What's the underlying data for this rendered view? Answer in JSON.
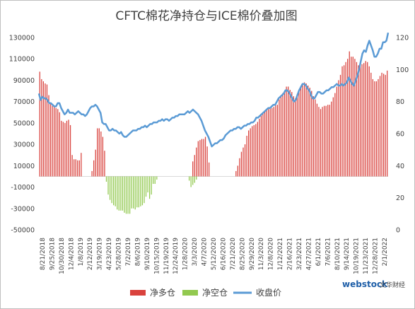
{
  "chart_data": {
    "type": "bar+line",
    "title": "CFTC棉花净持仓与ICE棉价叠加图",
    "y_left": {
      "min": -50000,
      "max": 130000,
      "step": 20000,
      "ticks": [
        "-50000",
        "-30000",
        "-10000",
        "10000",
        "30000",
        "50000",
        "70000",
        "90000",
        "110000",
        "130000"
      ]
    },
    "y_right": {
      "min": 0,
      "max": 120,
      "step": 20,
      "ticks": [
        "0",
        "20",
        "40",
        "60",
        "80",
        "100",
        "120"
      ]
    },
    "x_tick_labels": [
      "8/21/2018",
      "9/25/2018",
      "10/30/2018",
      "12/4/2018",
      "1/8/2019",
      "2/12/2019",
      "3/19/2019",
      "4/23/2019",
      "5/28/2019",
      "7/2/2019",
      "8/6/2019",
      "9/10/2019",
      "10/15/2019",
      "11/19/2019",
      "12/24/2019",
      "1/28/2020",
      "3/3/2020",
      "4/7/2020",
      "5/12/2020",
      "6/16/2020",
      "7/21/2020",
      "8/25/2020",
      "9/29/2020",
      "11/3/2020",
      "12/8/2020",
      "1/12/2021",
      "2/16/2021",
      "3/23/2021",
      "4/27/2021",
      "6/1/2021",
      "7/6/2021",
      "8/10/2021",
      "9/14/2021",
      "10/19/2021",
      "11/23/2021",
      "12/28/2021",
      "2/1/2022"
    ],
    "grid": false,
    "legend_position": "bottom",
    "series": [
      {
        "name": "净多仓",
        "kind": "bar",
        "color": "#d9423d",
        "axis": "left",
        "values": [
          98000,
          91000,
          89000,
          87000,
          86000,
          76000,
          68000,
          66000,
          65000,
          64000,
          63000,
          60000,
          52000,
          51000,
          50000,
          52000,
          53000,
          48000,
          20000,
          16000,
          16000,
          15000,
          15000,
          22000,
          0,
          0,
          0,
          0,
          0,
          5000,
          15000,
          25000,
          45000,
          45000,
          42000,
          37000,
          24000,
          0,
          0,
          0,
          0,
          0,
          0,
          0,
          0,
          0,
          0,
          0,
          0,
          0,
          0,
          0,
          0,
          0,
          0,
          0,
          0,
          0,
          0,
          0,
          0,
          0,
          0,
          0,
          0,
          0,
          0,
          0,
          0,
          0,
          0,
          0,
          0,
          0,
          0,
          0,
          0,
          0,
          0,
          0,
          0,
          0,
          0,
          0,
          0,
          14000,
          20000,
          27000,
          33000,
          34000,
          35000,
          35000,
          37000,
          28000,
          13000,
          0,
          0,
          0,
          0,
          0,
          0,
          0,
          0,
          0,
          0,
          0,
          0,
          0,
          0,
          5000,
          10000,
          17000,
          23000,
          27000,
          30000,
          38000,
          43000,
          45000,
          47000,
          48000,
          49000,
          51000,
          54000,
          57000,
          59000,
          61000,
          62000,
          63000,
          64000,
          64000,
          65000,
          67000,
          67000,
          72000,
          76000,
          78000,
          80000,
          84000,
          84000,
          81000,
          79000,
          75000,
          73000,
          77000,
          79000,
          84000,
          87000,
          88000,
          87000,
          85000,
          83000,
          80000,
          75000,
          72000,
          68000,
          65000,
          63000,
          65000,
          66000,
          66000,
          67000,
          67000,
          70000,
          74000,
          78000,
          84000,
          90000,
          95000,
          103000,
          104000,
          107000,
          110000,
          117000,
          112000,
          112000,
          110000,
          107000,
          104000,
          104000,
          105000,
          106000,
          108000,
          107000,
          103000,
          97000,
          91000,
          89000,
          89000,
          91000,
          94000,
          97000,
          96000,
          95000,
          99000
        ]
      },
      {
        "name": "净空仓",
        "kind": "bar",
        "color": "#92c94f",
        "axis": "left",
        "values": [
          0,
          0,
          0,
          0,
          0,
          0,
          0,
          0,
          0,
          0,
          0,
          0,
          0,
          0,
          0,
          0,
          0,
          0,
          0,
          0,
          0,
          0,
          0,
          0,
          0,
          0,
          0,
          0,
          0,
          0,
          0,
          0,
          0,
          0,
          0,
          0,
          0,
          -5000,
          -17000,
          -22000,
          -25000,
          -27000,
          -28000,
          -31000,
          -32000,
          -32000,
          -32000,
          -34000,
          -35000,
          -35000,
          -35000,
          -30000,
          -30000,
          -31000,
          -29000,
          -29000,
          -28000,
          -27000,
          -25000,
          -19000,
          -15000,
          -21000,
          -17000,
          -7000,
          -7000,
          -3000,
          0,
          0,
          0,
          0,
          0,
          0,
          0,
          0,
          0,
          0,
          0,
          0,
          0,
          0,
          0,
          0,
          0,
          -4000,
          -10000,
          -8000,
          -6000,
          -3000,
          0,
          0,
          0,
          0,
          0,
          0,
          0,
          0,
          0,
          0,
          0,
          0,
          0,
          0,
          0,
          0,
          0,
          0,
          0,
          0,
          0,
          0,
          0,
          0,
          0,
          0,
          0,
          0,
          0,
          0,
          0,
          0,
          0,
          0,
          0,
          0,
          0,
          0,
          0,
          0,
          0,
          0,
          0,
          0,
          0,
          0,
          0,
          0,
          0,
          0,
          0,
          0,
          0,
          0,
          0,
          0,
          0,
          0,
          0,
          0,
          0,
          0,
          0,
          0,
          0,
          0,
          0,
          0,
          0,
          0,
          0,
          0,
          0,
          0,
          0,
          0,
          0,
          0,
          0,
          0,
          0,
          0,
          0,
          0,
          0,
          0,
          0,
          0,
          0,
          0,
          0,
          0,
          0,
          0,
          0,
          0,
          0,
          0,
          0,
          0,
          0,
          0,
          0,
          0,
          0,
          0,
          0,
          0,
          0,
          0,
          0,
          0,
          0,
          0,
          0,
          0,
          0,
          0
        ]
      },
      {
        "name": "收盘价",
        "kind": "line",
        "color": "#5b9bd5",
        "axis": "right",
        "values": [
          85,
          81,
          83,
          82,
          82,
          81,
          79,
          79,
          78,
          77,
          77,
          79,
          79,
          76,
          74,
          72,
          73,
          75,
          73,
          73,
          73,
          72,
          73,
          74,
          73,
          72,
          72,
          71,
          72,
          74,
          76,
          77,
          77,
          78,
          77,
          75,
          73,
          67,
          66,
          66,
          64,
          62,
          62,
          63,
          62,
          62,
          61,
          60,
          61,
          59,
          58,
          58,
          59,
          60,
          61,
          62,
          62,
          62,
          63,
          63,
          64,
          64,
          65,
          64,
          65,
          66,
          66,
          67,
          67,
          67,
          68,
          68,
          69,
          68,
          69,
          69,
          68,
          69,
          70,
          70,
          71,
          71,
          72,
          72,
          72,
          72,
          73,
          74,
          73,
          74,
          75,
          74,
          73,
          72,
          70,
          68,
          65,
          62,
          60,
          58,
          55,
          52,
          53,
          54,
          54,
          55,
          56,
          56,
          57,
          59,
          60,
          61,
          62,
          62,
          63,
          63,
          64,
          64,
          63,
          64,
          65,
          65,
          66,
          66,
          67,
          67,
          68,
          70,
          70,
          71,
          72,
          73,
          74,
          75,
          76,
          76,
          77,
          78,
          78,
          80,
          82,
          83,
          84,
          85,
          87,
          87,
          86,
          84,
          82,
          80,
          81,
          84,
          87,
          89,
          91,
          91,
          90,
          88,
          87,
          84,
          82,
          82,
          84,
          86,
          86,
          85,
          85,
          86,
          87,
          87,
          88,
          89,
          89,
          90,
          91,
          90,
          90,
          91,
          90,
          91,
          92,
          95,
          93,
          91,
          90,
          93,
          96,
          100,
          105,
          110,
          112,
          111,
          115,
          118,
          115,
          112,
          108,
          108,
          110,
          113,
          113,
          117,
          117,
          118,
          123
        ]
      }
    ]
  },
  "watermark": {
    "brand": "webstock",
    "cn": "文华财经"
  }
}
